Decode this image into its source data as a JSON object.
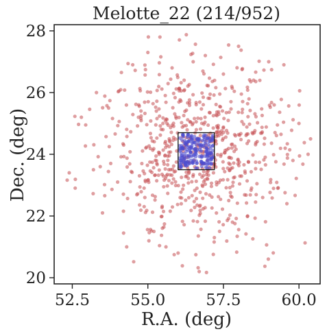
{
  "chart_data": {
    "type": "scatter",
    "title": "Melotte_22 (214/952)",
    "xlabel": "R.A. (deg)",
    "ylabel": "Dec. (deg)",
    "xlim": [
      51.9,
      60.7
    ],
    "ylim": [
      19.8,
      28.2
    ],
    "xticks": [
      52.5,
      55.0,
      57.5,
      60.0
    ],
    "xtick_labels": [
      "52.5",
      "55.0",
      "57.5",
      "60.0"
    ],
    "yticks": [
      20,
      22,
      24,
      26,
      28
    ],
    "ytick_labels": [
      "20",
      "22",
      "24",
      "26",
      "28"
    ],
    "grid": false,
    "legend": "none",
    "selection_box": {
      "x": [
        56.0,
        57.2
      ],
      "y": [
        23.5,
        24.7
      ]
    },
    "series": [
      {
        "role": "all members",
        "color": "#c44e52",
        "count": 952,
        "sample_points": [
          [
            52.4,
            23.4
          ],
          [
            52.8,
            25.2
          ],
          [
            53.2,
            23.5
          ],
          [
            53.3,
            26.0
          ],
          [
            53.5,
            22.1
          ],
          [
            53.7,
            25.5
          ],
          [
            54.0,
            23.1
          ],
          [
            54.2,
            24.3
          ],
          [
            54.3,
            21.0
          ],
          [
            54.5,
            26.9
          ],
          [
            54.7,
            25.6
          ],
          [
            54.9,
            22.6
          ],
          [
            55.0,
            27.3
          ],
          [
            55.2,
            21.5
          ],
          [
            55.4,
            27.8
          ],
          [
            55.6,
            21.0
          ],
          [
            55.8,
            26.8
          ],
          [
            56.0,
            20.8
          ],
          [
            56.2,
            26.4
          ],
          [
            56.5,
            27.0
          ],
          [
            56.7,
            20.2
          ],
          [
            56.9,
            27.2
          ],
          [
            57.2,
            21.3
          ],
          [
            57.5,
            26.6
          ],
          [
            57.8,
            21.8
          ],
          [
            58.0,
            27.5
          ],
          [
            58.3,
            22.0
          ],
          [
            58.5,
            26.4
          ],
          [
            58.8,
            22.6
          ],
          [
            59.0,
            27.0
          ],
          [
            59.3,
            22.9
          ],
          [
            59.5,
            26.9
          ],
          [
            59.8,
            23.8
          ],
          [
            60.0,
            25.0
          ],
          [
            60.3,
            24.0
          ],
          [
            59.6,
            22.4
          ],
          [
            55.5,
            25.0
          ],
          [
            56.8,
            23.0
          ],
          [
            57.9,
            24.6
          ],
          [
            54.8,
            23.7
          ]
        ]
      },
      {
        "role": "selected members",
        "color": "#4c4ccf",
        "count": 214,
        "x_range": [
          56.0,
          57.2
        ],
        "y_range": [
          23.5,
          24.7
        ]
      }
    ]
  }
}
